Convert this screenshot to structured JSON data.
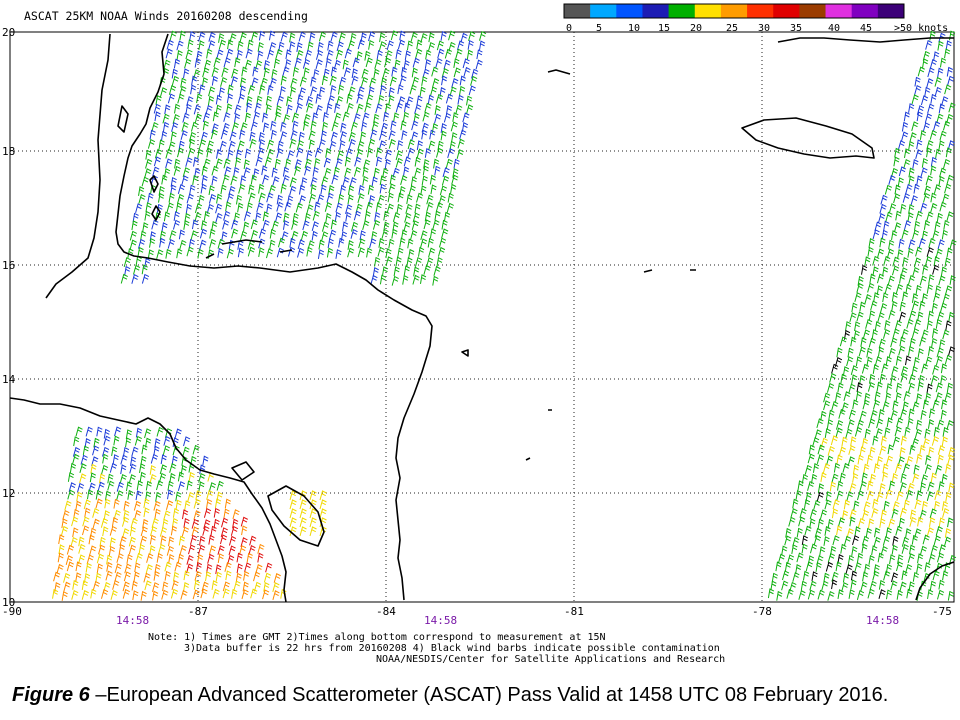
{
  "map": {
    "title": "ASCAT 25KM NOAA Winds 20160208 descending",
    "lon_ticks": [
      "-90",
      "-87",
      "-84",
      "-81",
      "-78",
      "-75"
    ],
    "lat_ticks": [
      "20",
      "18",
      "16",
      "14",
      "12",
      "10"
    ],
    "pass_times": [
      "14:58",
      "14:58",
      "14:58"
    ],
    "legend": {
      "labels": [
        "0",
        "5",
        "10",
        "15",
        "20",
        "25",
        "30",
        "35",
        "40",
        "45",
        ">50 knots"
      ],
      "colors": [
        "#555555",
        "#00a8ff",
        "#0055ff",
        "#1c1cb4",
        "#00b000",
        "#ffe000",
        "#ff9c00",
        "#ff3000",
        "#e00000",
        "#9b3c00",
        "#e030e0",
        "#8000c0",
        "#3c0078"
      ]
    },
    "notes": [
      "Note: 1) Times are GMT 2)Times along bottom correspond to measurement at 15N",
      "3)Data buffer is 22 hrs from 20160208 4) Black wind barbs indicate possible contamination",
      "NOAA/NESDIS/Center for Satellite Applications and Research"
    ]
  },
  "caption": {
    "figure_label": "Figure 6",
    "text": " –European Advanced Scatterometer (ASCAT) Pass Valid at 1458 UTC 08 February 2016."
  }
}
